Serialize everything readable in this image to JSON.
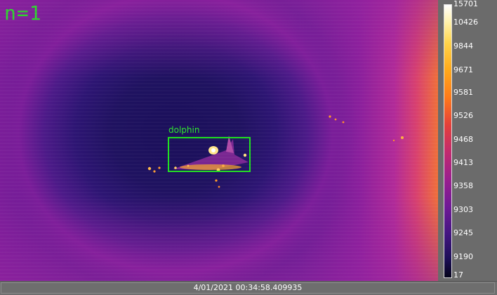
{
  "overlay": {
    "frame_counter": "n=1",
    "detection_label": "dolphin"
  },
  "colorbar": {
    "ticks": [
      "15701",
      "10426",
      "9844",
      "9671",
      "9581",
      "9526",
      "9468",
      "9413",
      "9358",
      "9303",
      "9245",
      "9190",
      "17"
    ],
    "palette": "inferno",
    "colors": {
      "low": "#05031a",
      "mid": "#9a1f8e",
      "high": "#ffffff"
    }
  },
  "status": {
    "timestamp": "4/01/2021 00:34:58.409935"
  },
  "colors": {
    "detection": "#1fe01f",
    "counter": "#2fd32f",
    "panel": "#6b6b6b"
  }
}
